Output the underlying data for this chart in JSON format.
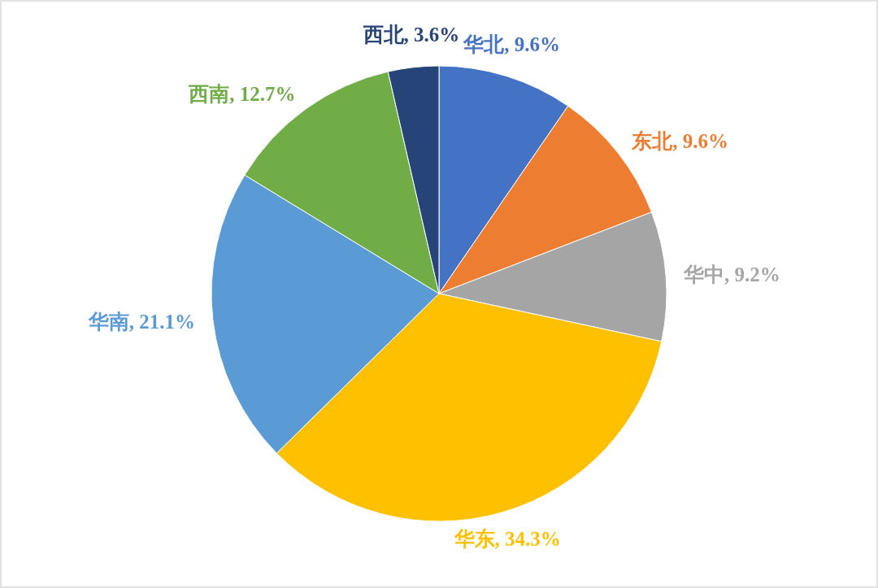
{
  "chart_data": {
    "type": "pie",
    "categories": [
      "华北",
      "东北",
      "华中",
      "华东",
      "华南",
      "西南",
      "西北"
    ],
    "values": [
      9.6,
      9.6,
      9.2,
      34.3,
      21.1,
      12.7,
      3.6
    ],
    "value_labels": [
      "9.6%",
      "9.6%",
      "9.2%",
      "34.3%",
      "21.1%",
      "12.7%",
      "3.6%"
    ],
    "colors": [
      "#4472c4",
      "#ed7d31",
      "#a5a5a5",
      "#ffc000",
      "#5b9bd5",
      "#70ad47",
      "#264478"
    ],
    "data_labels": true,
    "legend": false
  }
}
